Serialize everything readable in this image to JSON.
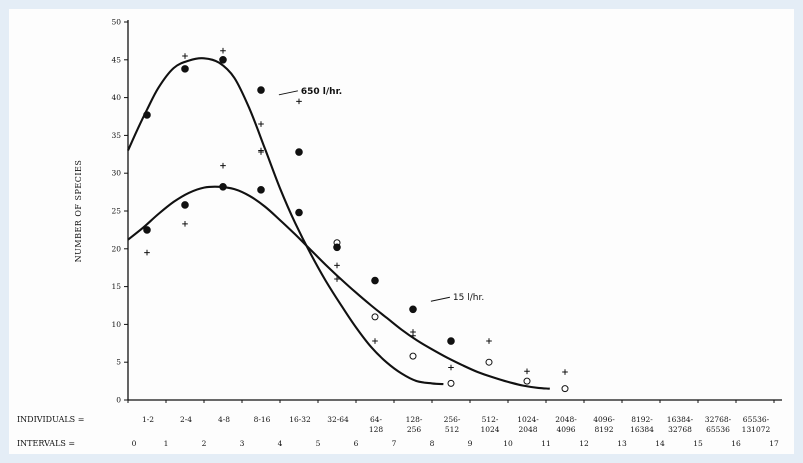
{
  "chart_data": {
    "type": "line",
    "title": "",
    "ylabel": "NUMBER OF SPECIES",
    "xlabel": "",
    "ylim": [
      0,
      50
    ],
    "xlim": [
      0,
      17
    ],
    "grid": false,
    "yticks": [
      "0",
      "5",
      "10",
      "15",
      "20",
      "25",
      "30",
      "35",
      "40",
      "45",
      "50"
    ],
    "individuals_row_label": "INDIVIDUALS =",
    "intervals_row_label": "INTERVALS =",
    "individuals_labels": [
      [
        "1-2"
      ],
      [
        "2-4"
      ],
      [
        "4-8"
      ],
      [
        "8-16"
      ],
      [
        "16-32"
      ],
      [
        "32-64"
      ],
      [
        "64-",
        "128"
      ],
      [
        "128-",
        "256"
      ],
      [
        "256-",
        "512"
      ],
      [
        "512-",
        "1024"
      ],
      [
        "1024-",
        "2048"
      ],
      [
        "2048-",
        "4096"
      ],
      [
        "4096-",
        "8192"
      ],
      [
        "8192-",
        "16384"
      ],
      [
        "16384-",
        "32768"
      ],
      [
        "32768-",
        "65536"
      ],
      [
        "65536-",
        "131072"
      ]
    ],
    "interval_labels": [
      "0",
      "1",
      "2",
      "3",
      "4",
      "5",
      "6",
      "7",
      "8",
      "9",
      "10",
      "11",
      "12",
      "13",
      "14",
      "15",
      "16",
      "17"
    ],
    "series": [
      {
        "name": "650 l/hr.",
        "label_position": [
          4.55,
          40.5
        ],
        "curve": [
          [
            0,
            33
          ],
          [
            0.25,
            35.8
          ],
          [
            0.5,
            38.4
          ],
          [
            0.8,
            41.3
          ],
          [
            1.2,
            43.9
          ],
          [
            1.6,
            44.9
          ],
          [
            2.0,
            45.2
          ],
          [
            2.4,
            44.6
          ],
          [
            2.8,
            42.6
          ],
          [
            3.2,
            38.5
          ],
          [
            3.6,
            33.3
          ],
          [
            4.0,
            28.0
          ],
          [
            4.4,
            23.4
          ],
          [
            4.8,
            19.4
          ],
          [
            5.2,
            15.8
          ],
          [
            5.6,
            12.6
          ],
          [
            6.0,
            9.6
          ],
          [
            6.4,
            7.0
          ],
          [
            6.8,
            5.0
          ],
          [
            7.2,
            3.5
          ],
          [
            7.6,
            2.5
          ],
          [
            8.0,
            2.2
          ],
          [
            8.3,
            2.1
          ]
        ],
        "filled_points": [
          [
            0.5,
            37.7
          ],
          [
            1.5,
            43.8
          ],
          [
            2.5,
            45.0
          ],
          [
            3.5,
            41.0
          ],
          [
            4.5,
            32.8
          ]
        ],
        "open_points": [
          [
            5.5,
            20.8
          ],
          [
            6.5,
            11.0
          ],
          [
            7.5,
            5.8
          ],
          [
            8.5,
            2.2
          ]
        ],
        "plus_points": [
          [
            1.5,
            45.5
          ],
          [
            2.5,
            46.2
          ],
          [
            3.5,
            36.5
          ],
          [
            3.5,
            33.0
          ],
          [
            4.5,
            39.5
          ],
          [
            5.5,
            17.8
          ],
          [
            6.5,
            7.8
          ],
          [
            7.5,
            8.5
          ]
        ]
      },
      {
        "name": "15 l/hr.",
        "label_position": [
          8.55,
          13.2
        ],
        "curve": [
          [
            0,
            21.2
          ],
          [
            0.4,
            22.8
          ],
          [
            0.8,
            24.6
          ],
          [
            1.2,
            26.2
          ],
          [
            1.6,
            27.4
          ],
          [
            2.0,
            28.1
          ],
          [
            2.4,
            28.2
          ],
          [
            2.8,
            27.9
          ],
          [
            3.2,
            27.0
          ],
          [
            3.6,
            25.6
          ],
          [
            4.0,
            23.8
          ],
          [
            4.4,
            21.9
          ],
          [
            4.8,
            19.9
          ],
          [
            5.2,
            17.9
          ],
          [
            5.6,
            16.0
          ],
          [
            6.0,
            14.2
          ],
          [
            6.4,
            12.5
          ],
          [
            6.8,
            10.9
          ],
          [
            7.2,
            9.3
          ],
          [
            7.6,
            7.9
          ],
          [
            8.0,
            6.7
          ],
          [
            8.4,
            5.6
          ],
          [
            8.8,
            4.6
          ],
          [
            9.2,
            3.7
          ],
          [
            9.6,
            3.0
          ],
          [
            10.0,
            2.4
          ],
          [
            10.4,
            1.9
          ],
          [
            10.8,
            1.6
          ],
          [
            11.1,
            1.5
          ]
        ],
        "filled_points": [
          [
            0.5,
            22.5
          ],
          [
            1.5,
            25.8
          ],
          [
            2.5,
            28.2
          ],
          [
            3.5,
            27.8
          ],
          [
            4.5,
            24.8
          ],
          [
            5.5,
            20.2
          ],
          [
            6.5,
            15.8
          ],
          [
            7.5,
            12.0
          ],
          [
            8.5,
            7.8
          ]
        ],
        "open_points": [
          [
            9.5,
            5.0
          ],
          [
            10.5,
            2.5
          ],
          [
            11.5,
            1.5
          ]
        ],
        "plus_points": [
          [
            0.5,
            19.5
          ],
          [
            1.5,
            23.3
          ],
          [
            2.5,
            31.0
          ],
          [
            3.5,
            32.8
          ],
          [
            5.5,
            16.0
          ],
          [
            7.5,
            9.0
          ],
          [
            9.5,
            7.8
          ],
          [
            10.5,
            3.8
          ],
          [
            11.5,
            3.7
          ],
          [
            8.5,
            4.3
          ]
        ]
      }
    ]
  }
}
